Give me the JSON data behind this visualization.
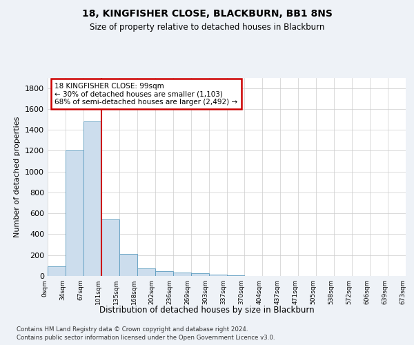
{
  "title1": "18, KINGFISHER CLOSE, BLACKBURN, BB1 8NS",
  "title2": "Size of property relative to detached houses in Blackburn",
  "xlabel": "Distribution of detached houses by size in Blackburn",
  "ylabel": "Number of detached properties",
  "annotation_line1": "18 KINGFISHER CLOSE: 99sqm",
  "annotation_line2": "← 30% of detached houses are smaller (1,103)",
  "annotation_line3": "68% of semi-detached houses are larger (2,492) →",
  "footnote1": "Contains HM Land Registry data © Crown copyright and database right 2024.",
  "footnote2": "Contains public sector information licensed under the Open Government Licence v3.0.",
  "bar_values": [
    90,
    1200,
    1480,
    540,
    210,
    70,
    45,
    35,
    25,
    15,
    5,
    2,
    1,
    0,
    0,
    0,
    0,
    0,
    0,
    0
  ],
  "tick_labels": [
    "0sqm",
    "34sqm",
    "67sqm",
    "101sqm",
    "135sqm",
    "168sqm",
    "202sqm",
    "236sqm",
    "269sqm",
    "303sqm",
    "337sqm",
    "370sqm",
    "404sqm",
    "437sqm",
    "471sqm",
    "505sqm",
    "538sqm",
    "572sqm",
    "606sqm",
    "639sqm",
    "673sqm"
  ],
  "bar_color": "#ccdded",
  "bar_edge_color": "#5b9bbf",
  "vline_pos": 3,
  "vline_color": "#cc0000",
  "ylim": [
    0,
    1900
  ],
  "yticks": [
    0,
    200,
    400,
    600,
    800,
    1000,
    1200,
    1400,
    1600,
    1800
  ],
  "bg_color": "#eef2f7",
  "plot_bg_color": "#ffffff",
  "grid_color": "#cccccc"
}
